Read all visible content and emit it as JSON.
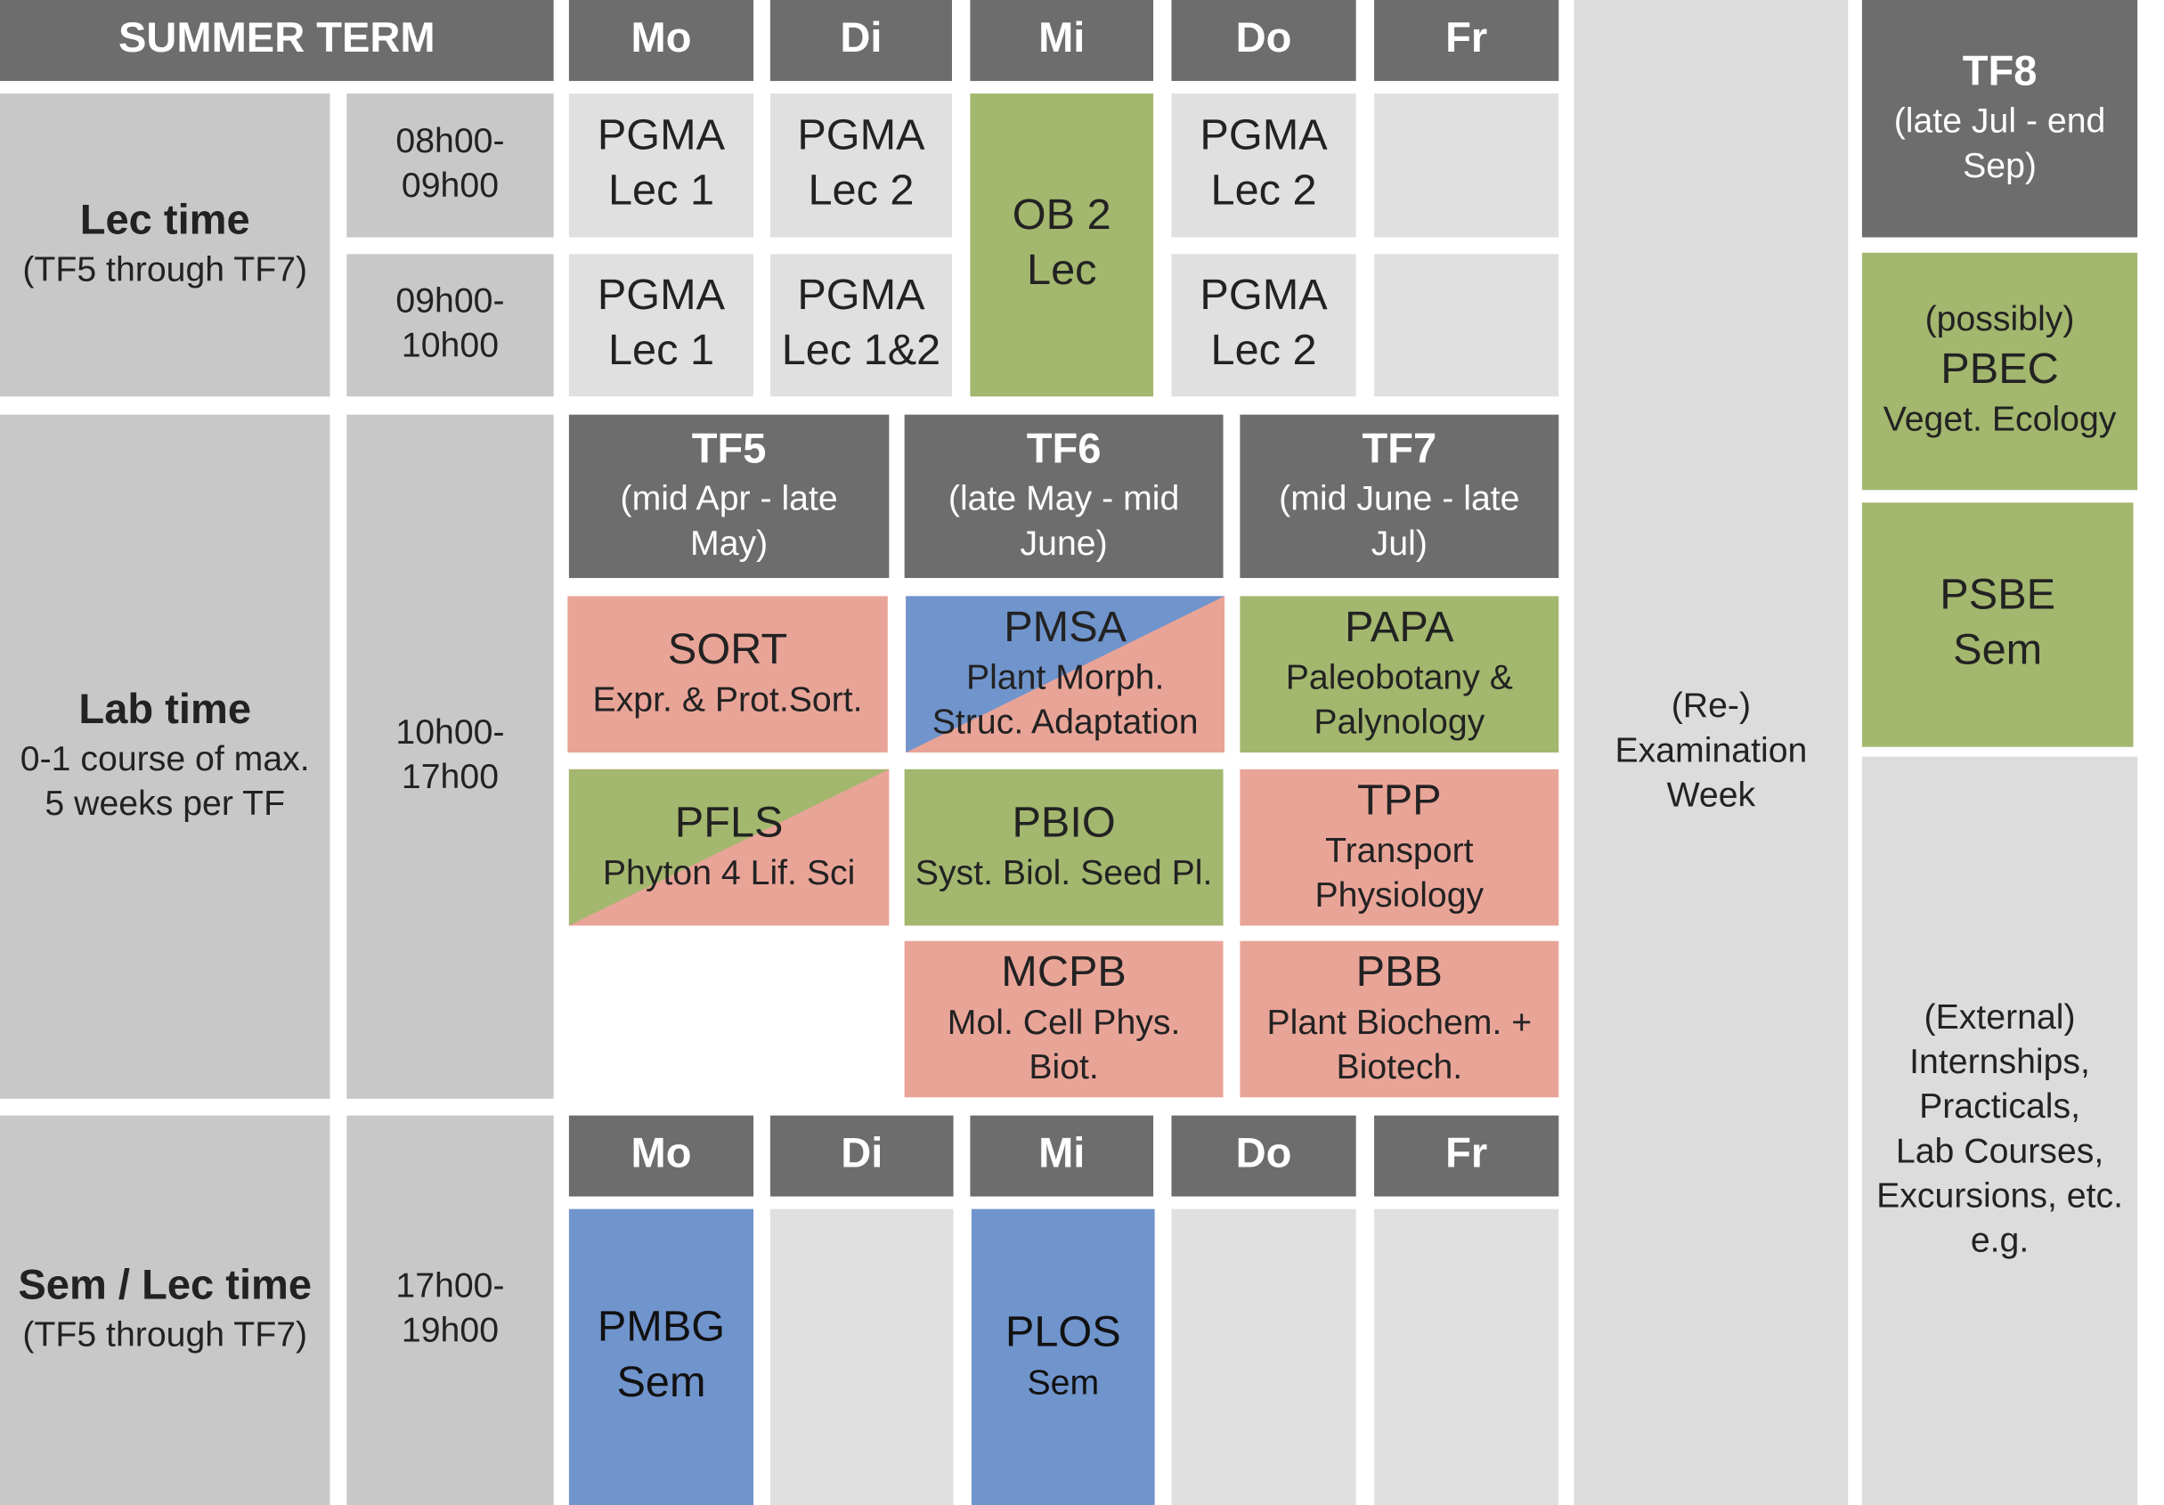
{
  "cells": [
    {
      "lines": [
        "SUMMER TERM"
      ]
    },
    {
      "lines": [
        "Mo"
      ]
    },
    {
      "lines": [
        "Di"
      ]
    },
    {
      "lines": [
        "Mi"
      ]
    },
    {
      "lines": [
        "Do"
      ]
    },
    {
      "lines": [
        "Fr"
      ]
    },
    {
      "lines": [
        "(Re-)",
        "Examination",
        "Week"
      ]
    },
    {
      "lines": [
        "TF8",
        "(late Jul - end",
        "Sep)"
      ]
    },
    {
      "lines": [
        "(possibly)",
        "PBEC",
        "Veget. Ecology"
      ]
    },
    {
      "lines": [
        "PSBE",
        "Sem"
      ]
    },
    {
      "lines": [
        "(External)",
        "Internships,",
        "Practicals,",
        "Lab Courses,",
        "Excursions, etc.",
        "e.g."
      ]
    },
    {
      "lines": [
        "Lec time",
        "(TF5 through TF7)"
      ]
    },
    {
      "lines": [
        "08h00-",
        "09h00"
      ]
    },
    {
      "lines": [
        "09h00-",
        "10h00"
      ]
    },
    {
      "lines": [
        "Lab time",
        "0-1 course of max.",
        "5 weeks per TF"
      ]
    },
    {
      "lines": [
        "10h00-",
        "17h00"
      ]
    },
    {
      "lines": [
        "Sem / Lec time",
        "(TF5 through TF7)"
      ]
    },
    {
      "lines": [
        "17h00-",
        "19h00"
      ]
    },
    {
      "lines": [
        "PGMA",
        "Lec 1"
      ]
    },
    {
      "lines": [
        "PGMA",
        "Lec 2"
      ]
    },
    {
      "lines": [
        "OB 2",
        "Lec"
      ]
    },
    {
      "lines": [
        "PGMA",
        "Lec 2"
      ]
    },
    {
      "lines": [
        "PGMA",
        "Lec 1"
      ]
    },
    {
      "lines": [
        "PGMA",
        "Lec 1&2"
      ]
    },
    {
      "lines": [
        "PGMA",
        "Lec 2"
      ]
    },
    {
      "lines": [
        "TF5",
        "(mid Apr - late",
        "May)"
      ]
    },
    {
      "lines": [
        "TF6",
        "(late May - mid",
        "June)"
      ]
    },
    {
      "lines": [
        "TF7",
        "(mid June - late",
        "Jul)"
      ]
    },
    {
      "lines": [
        "SORT",
        "Expr. & Prot.Sort."
      ]
    },
    {
      "lines": [
        "PMSA",
        "Plant Morph.",
        "Struc. Adaptation"
      ]
    },
    {
      "lines": [
        "PAPA",
        "Paleobotany &",
        "Palynology"
      ]
    },
    {
      "lines": [
        "PFLS",
        "Phyton 4 Lif. Sci"
      ]
    },
    {
      "lines": [
        "PBIO",
        "Syst. Biol. Seed Pl."
      ]
    },
    {
      "lines": [
        "TPP",
        "Transport",
        "Physiology"
      ]
    },
    {
      "lines": [
        "MCPB",
        "Mol. Cell Phys.",
        "Biot."
      ]
    },
    {
      "lines": [
        "PBB",
        "Plant Biochem. +",
        "Biotech."
      ]
    },
    {
      "lines": [
        "Mo"
      ]
    },
    {
      "lines": [
        "Di"
      ]
    },
    {
      "lines": [
        "Mi"
      ]
    },
    {
      "lines": [
        "Do"
      ]
    },
    {
      "lines": [
        "Fr"
      ]
    },
    {
      "lines": [
        "PMBG",
        "Sem"
      ]
    },
    {
      "lines": [
        "PLOS",
        "Sem"
      ]
    }
  ]
}
